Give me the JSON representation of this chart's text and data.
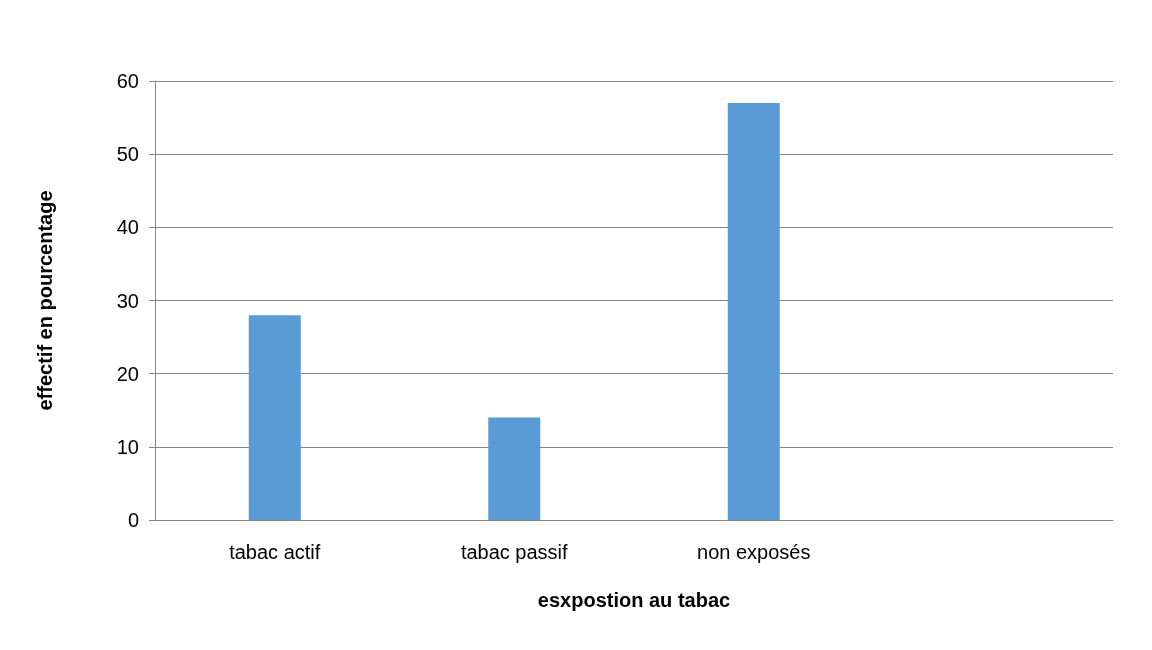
{
  "chart_data": {
    "type": "bar",
    "xlabel": "esxpostion au tabac",
    "ylabel": "effectif en pourcentage",
    "categories": [
      "tabac actif",
      "tabac passif",
      "non exposés",
      null
    ],
    "values": [
      28,
      14,
      57,
      null
    ],
    "color": "#5b9bd5",
    "ylim": [
      0,
      60
    ],
    "yticks": [
      0,
      10,
      20,
      30,
      40,
      50,
      60
    ],
    "grid": "y"
  }
}
